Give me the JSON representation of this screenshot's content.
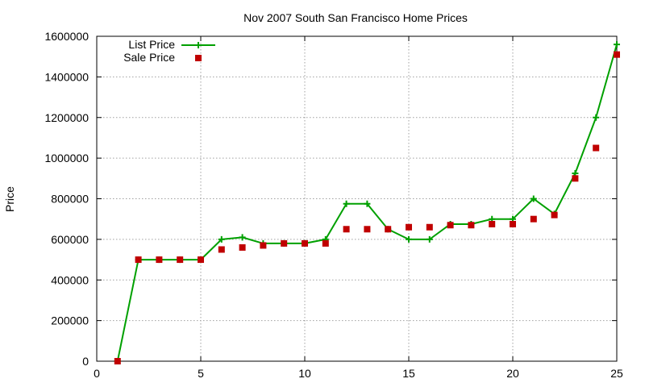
{
  "chart_data": {
    "type": "line",
    "title": "Nov 2007 South San Francisco Home Prices",
    "xlabel": "",
    "ylabel": "Price",
    "xlim": [
      0,
      25
    ],
    "ylim": [
      0,
      1600000
    ],
    "xticks": [
      0,
      5,
      10,
      15,
      20,
      25
    ],
    "yticks": [
      0,
      200000,
      400000,
      600000,
      800000,
      1000000,
      1200000,
      1400000,
      1600000
    ],
    "grid": true,
    "legend_position": "top-left",
    "series": [
      {
        "name": "List Price",
        "style": "line+cross",
        "color": "#00a000",
        "x": [
          1,
          2,
          3,
          4,
          5,
          6,
          7,
          8,
          9,
          10,
          11,
          12,
          13,
          14,
          15,
          16,
          17,
          18,
          19,
          20,
          21,
          22,
          23,
          24,
          25
        ],
        "values": [
          0,
          500000,
          500000,
          500000,
          500000,
          600000,
          610000,
          580000,
          580000,
          580000,
          600000,
          775000,
          775000,
          650000,
          600000,
          600000,
          675000,
          675000,
          700000,
          700000,
          800000,
          725000,
          925000,
          1200000,
          1560000
        ]
      },
      {
        "name": "Sale Price",
        "style": "square",
        "color": "#c00000",
        "x": [
          1,
          2,
          3,
          4,
          5,
          6,
          7,
          8,
          9,
          10,
          11,
          12,
          13,
          14,
          15,
          16,
          17,
          18,
          19,
          20,
          21,
          22,
          23,
          24,
          25
        ],
        "values": [
          0,
          500000,
          500000,
          500000,
          500000,
          550000,
          560000,
          570000,
          580000,
          580000,
          580000,
          650000,
          650000,
          650000,
          660000,
          660000,
          670000,
          670000,
          675000,
          675000,
          700000,
          720000,
          900000,
          1050000,
          1510000
        ]
      }
    ]
  }
}
